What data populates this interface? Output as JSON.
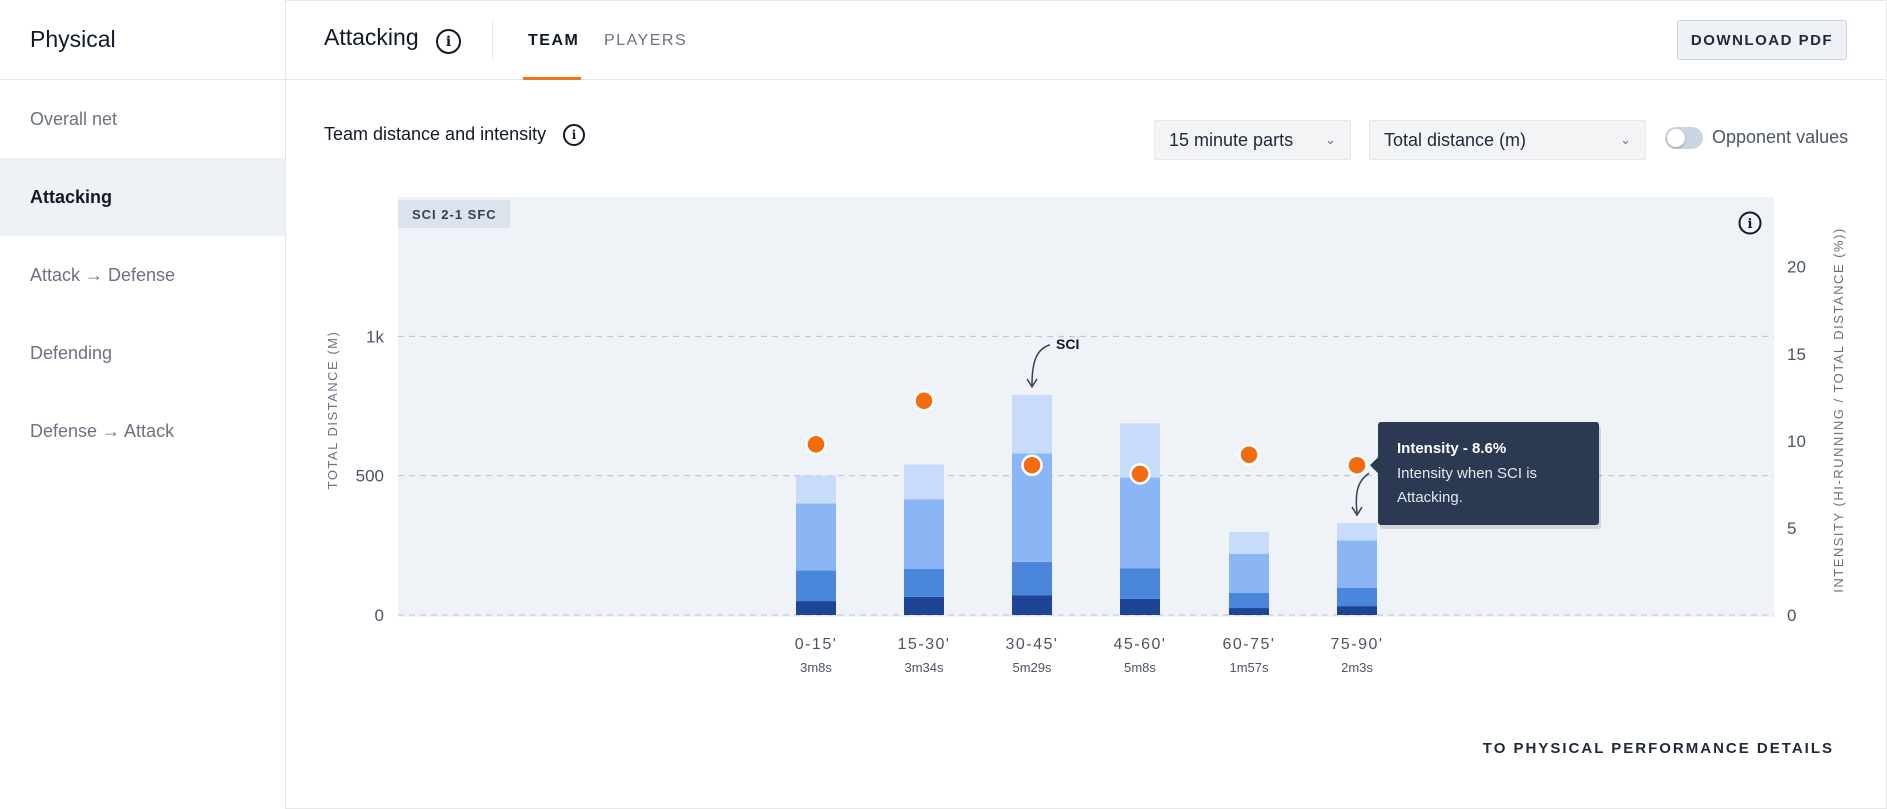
{
  "sidebar": {
    "title": "Physical",
    "items": [
      {
        "label": "Overall net",
        "active": false
      },
      {
        "label": "Attacking",
        "active": true
      },
      {
        "label": "Attack → Defense",
        "active": false
      },
      {
        "label": "Defending",
        "active": false
      },
      {
        "label": "Defense → Attack",
        "active": false
      }
    ]
  },
  "header": {
    "title": "Attacking",
    "tabs": [
      {
        "label": "TEAM",
        "active": true
      },
      {
        "label": "PLAYERS",
        "active": false
      }
    ],
    "download_label": "DOWNLOAD PDF"
  },
  "panel": {
    "title": "Team distance and intensity",
    "parts_select": "15 minute parts",
    "metric_select": "Total distance (m)",
    "opponent_toggle_label": "Opponent values",
    "opponent_toggle_on": false
  },
  "chart_data": {
    "type": "bar",
    "match_badge": "SCI 2-1 SFC",
    "categories": [
      "0-15'",
      "15-30'",
      "30-45'",
      "45-60'",
      "60-75'",
      "75-90'"
    ],
    "durations": [
      "3m8s",
      "3m34s",
      "5m29s",
      "5m8s",
      "1m57s",
      "2m3s"
    ],
    "ylabel": "TOTAL DISTANCE (M)",
    "y2label": "INTENSITY (HI-RUNNING / TOTAL DISTANCE (%))",
    "ylim": [
      0,
      1500
    ],
    "y2lim": [
      0,
      24
    ],
    "y_ticks": [
      {
        "value": 0,
        "label": "0"
      },
      {
        "value": 500,
        "label": "500"
      },
      {
        "value": 1000,
        "label": "1k"
      }
    ],
    "y2_ticks": [
      0,
      5,
      10,
      15,
      20
    ],
    "stacked_series": [
      {
        "name": "segment-1",
        "color": "#1e4595",
        "values": [
          50,
          65,
          70,
          58,
          25,
          32
        ]
      },
      {
        "name": "segment-2",
        "color": "#4a86dc",
        "values": [
          110,
          100,
          120,
          110,
          55,
          65
        ]
      },
      {
        "name": "segment-3",
        "color": "#8ab6f5",
        "values": [
          240,
          250,
          390,
          325,
          140,
          170
        ]
      },
      {
        "name": "segment-4",
        "color": "#c6dcfa",
        "values": [
          100,
          125,
          210,
          195,
          78,
          63
        ]
      }
    ],
    "intensity": [
      9.8,
      12.3,
      8.6,
      8.1,
      9.2,
      8.6
    ],
    "intensity_color": "#f26b0f",
    "annotation": {
      "label": "SCI",
      "category_index": 2
    },
    "tooltip": {
      "category_index": 5,
      "title": "Intensity - 8.6%",
      "body_line1": "Intensity when SCI is",
      "body_line2": "Attacking."
    },
    "grid": true
  },
  "footer_link": "TO PHYSICAL PERFORMANCE DETAILS"
}
